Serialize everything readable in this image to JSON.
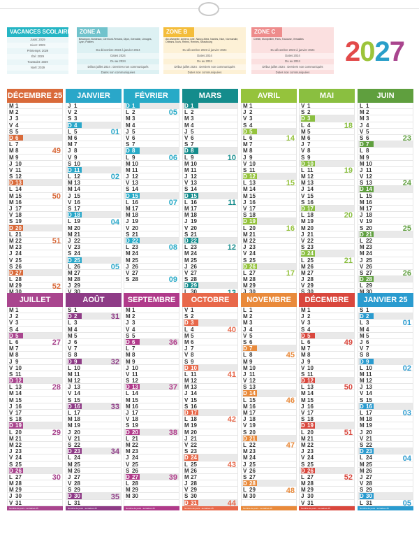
{
  "year": "2027",
  "vacances": {
    "title": "VACANCES SCOLAIRES",
    "rows": [
      "Jussi: 2029",
      "Hiver: 2029",
      "Printemps: 2029",
      "Été: 2029",
      "Toussaint: 2029",
      "Noël: 2029"
    ],
    "color": "#25b5c4"
  },
  "zones": [
    {
      "name": "ZONE A",
      "color": "#71c3cc",
      "bg": "#ddf1f3",
      "head": "Besançon, Bordeaux, Clermont-Ferrand, Dijon, Grenoble, Limoges, Lyon, Poitiers",
      "rows": [
        "Du décembre 2023 à janvier 2024",
        "Dates 2024",
        "Du au 2024",
        "Début juillet 2024 : Derniers non communiqués",
        "Dates non communiquées"
      ]
    },
    {
      "name": "ZONE B",
      "color": "#f4bd3b",
      "bg": "#fdf1d6",
      "head": "Aix-Marseille, Amiens, Lille, Nancy-Metz, Nantes, Nice, Normandie, Orléans-Tours, Reims, Rennes, Strasbourg",
      "rows": [
        "Du décembre 2023 à janvier 2024",
        "Dates 2024",
        "Du au 2024",
        "Début juillet 2024 : Derniers non communiqués",
        "Dates non communiquées"
      ]
    },
    {
      "name": "ZONE C",
      "color": "#ee8c8c",
      "bg": "#fbe0e0",
      "head": "Créteil, Montpellier, Paris, Toulouse, Versailles",
      "rows": [
        "Du décembre 2023 à janvier 2024",
        "Dates 2024",
        "Du au 2024",
        "Début juillet 2024 : Derniers non communiqués",
        "Dates non communiquées"
      ]
    }
  ],
  "footer_text": "Nombre de jours : semaines 25",
  "months": [
    {
      "name": "DÉCEMBRE 25",
      "color": "#d96a3a",
      "first": 1,
      "days": 31,
      "weeks": [
        [
          8,
          "49"
        ],
        [
          15,
          "50"
        ],
        [
          22,
          "51"
        ],
        [
          29,
          "52"
        ]
      ]
    },
    {
      "name": "JANVIER",
      "color": "#2aa7c9",
      "first": 3,
      "days": 31,
      "weeks": [
        [
          5,
          "01"
        ],
        [
          12,
          "02"
        ],
        [
          19,
          "04"
        ],
        [
          26,
          "05"
        ]
      ]
    },
    {
      "name": "FÉVRIER",
      "color": "#27aac7",
      "first": 6,
      "days": 28,
      "weeks": [
        [
          2,
          "05"
        ],
        [
          9,
          "06"
        ],
        [
          16,
          "07"
        ],
        [
          23,
          "08"
        ],
        [
          30,
          "09"
        ]
      ]
    },
    {
      "name": "MARS",
      "color": "#148c8c",
      "first": 6,
      "days": 31,
      "weeks": [
        [
          9,
          "10"
        ],
        [
          16,
          "11"
        ],
        [
          23,
          "12"
        ],
        [
          30,
          "13"
        ]
      ]
    },
    {
      "name": "AVRIL",
      "color": "#95c33c",
      "first": 2,
      "days": 30,
      "weeks": [
        [
          6,
          "14"
        ],
        [
          13,
          "15"
        ],
        [
          20,
          "16"
        ],
        [
          27,
          "17"
        ]
      ]
    },
    {
      "name": "MAI",
      "color": "#8abf40",
      "first": 4,
      "days": 31,
      "weeks": [
        [
          4,
          "18"
        ],
        [
          11,
          "19"
        ],
        [
          18,
          "20"
        ],
        [
          25,
          "21"
        ]
      ]
    },
    {
      "name": "JUIN",
      "color": "#5f9f3e",
      "first": 0,
      "days": 30,
      "weeks": [
        [
          6,
          "23"
        ],
        [
          13,
          "24"
        ],
        [
          20,
          "25"
        ],
        [
          27,
          "26"
        ]
      ]
    },
    {
      "name": "JUILLET",
      "color": "#a9458e",
      "first": 2,
      "days": 31,
      "weeks": [
        [
          6,
          "27"
        ],
        [
          13,
          "28"
        ],
        [
          20,
          "29"
        ],
        [
          27,
          "30"
        ]
      ]
    },
    {
      "name": "AOÛT",
      "color": "#8e3b86",
      "first": 5,
      "days": 31,
      "weeks": [
        [
          2,
          "31"
        ],
        [
          9,
          "32"
        ],
        [
          16,
          "33"
        ],
        [
          23,
          "34"
        ],
        [
          30,
          "35"
        ]
      ]
    },
    {
      "name": "SEPTEMBRE",
      "color": "#b03a8a",
      "first": 1,
      "days": 30,
      "weeks": [
        [
          6,
          "36"
        ],
        [
          13,
          "37"
        ],
        [
          20,
          "38"
        ],
        [
          27,
          "39"
        ]
      ]
    },
    {
      "name": "OCTOBRE",
      "color": "#e8684a",
      "first": 4,
      "days": 31,
      "weeks": [
        [
          4,
          "40"
        ],
        [
          11,
          "41"
        ],
        [
          18,
          "42"
        ],
        [
          25,
          "43"
        ],
        [
          31,
          "44"
        ]
      ]
    },
    {
      "name": "NOVEMBRE",
      "color": "#e98a3b",
      "first": 0,
      "days": 30,
      "weeks": [
        [
          8,
          "45"
        ],
        [
          15,
          "46"
        ],
        [
          22,
          "47"
        ],
        [
          29,
          "48"
        ]
      ]
    },
    {
      "name": "DÉCEMBRE",
      "color": "#d9473d",
      "first": 2,
      "days": 31,
      "weeks": [
        [
          6,
          "49"
        ],
        [
          13,
          "50"
        ],
        [
          20,
          "51"
        ],
        [
          27,
          "52"
        ]
      ]
    },
    {
      "name": "JANVIER 25",
      "color": "#2a9bcf",
      "first": 5,
      "days": 31,
      "weeks": [
        [
          3,
          "01"
        ],
        [
          10,
          "02"
        ],
        [
          17,
          "03"
        ],
        [
          24,
          "04"
        ],
        [
          31,
          "05"
        ]
      ]
    }
  ],
  "letters": [
    "L",
    "M",
    "M",
    "J",
    "V",
    "S",
    "D"
  ]
}
